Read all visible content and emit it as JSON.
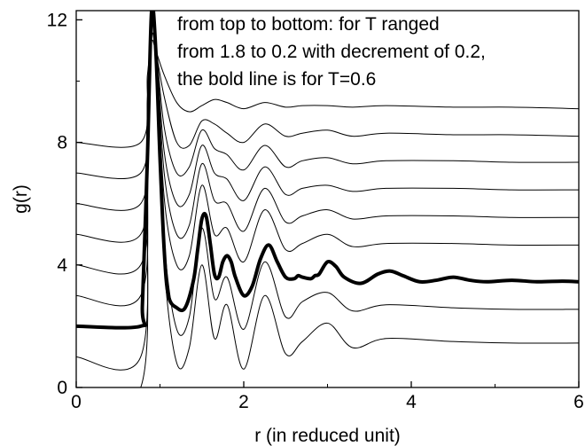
{
  "chart_data": {
    "type": "line",
    "title": "",
    "xlabel": "r (in reduced unit)",
    "ylabel": "g(r)",
    "xlim": [
      0,
      6
    ],
    "ylim": [
      0,
      12.3
    ],
    "xticks": [
      0,
      2,
      4,
      6
    ],
    "yticks": [
      0,
      4,
      8,
      12
    ],
    "grid": false,
    "legend": "none",
    "annotation": [
      "from top to bottom: for T ranged",
      "from 1.8 to 0.2 with decrement of 0.2,",
      "the bold line is for T=0.6"
    ],
    "series": [
      {
        "T": 1.8,
        "bold": false,
        "baseline": 8.0,
        "x": [
          0,
          0.77,
          0.85,
          0.9,
          0.95,
          1.05,
          1.2,
          1.35,
          1.5,
          1.65,
          1.8,
          2.0,
          2.25,
          2.5,
          2.7,
          3.0,
          3.3,
          3.7,
          4.5,
          5.2,
          6.0
        ],
        "y": [
          8.0,
          8.0,
          10.2,
          11.3,
          11.0,
          10.2,
          9.3,
          9.0,
          9.2,
          9.4,
          9.3,
          9.1,
          9.3,
          9.15,
          9.2,
          9.2,
          9.15,
          9.2,
          9.15,
          9.15,
          9.1
        ]
      },
      {
        "T": 1.6,
        "bold": false,
        "baseline": 7.0,
        "x": [
          0,
          0.77,
          0.85,
          0.9,
          0.95,
          1.05,
          1.2,
          1.35,
          1.5,
          1.65,
          1.8,
          2.0,
          2.25,
          2.5,
          2.7,
          3.0,
          3.3,
          3.7,
          4.5,
          5.2,
          6.0
        ],
        "y": [
          7.0,
          7.0,
          9.5,
          11.5,
          11.0,
          9.5,
          8.0,
          7.9,
          8.7,
          8.6,
          8.3,
          8.0,
          8.6,
          8.2,
          8.3,
          8.4,
          8.2,
          8.3,
          8.25,
          8.25,
          8.2
        ]
      },
      {
        "T": 1.4,
        "bold": false,
        "baseline": 6.0,
        "x": [
          0,
          0.77,
          0.85,
          0.9,
          0.95,
          1.05,
          1.2,
          1.35,
          1.5,
          1.65,
          1.8,
          2.0,
          2.25,
          2.5,
          2.7,
          3.0,
          3.3,
          3.7,
          4.5,
          5.2,
          6.0
        ],
        "y": [
          6.0,
          6.0,
          9.0,
          11.8,
          11.2,
          8.5,
          7.0,
          7.2,
          8.4,
          7.8,
          7.6,
          7.1,
          7.9,
          7.2,
          7.4,
          7.5,
          7.3,
          7.4,
          7.4,
          7.35,
          7.35
        ]
      },
      {
        "T": 1.2,
        "bold": false,
        "baseline": 5.0,
        "x": [
          0,
          0.77,
          0.85,
          0.9,
          0.95,
          1.05,
          1.2,
          1.35,
          1.5,
          1.65,
          1.8,
          2.0,
          2.25,
          2.5,
          2.7,
          3.0,
          3.3,
          3.7,
          4.5,
          5.2,
          6.0
        ],
        "y": [
          5.0,
          5.0,
          8.5,
          12.0,
          11.3,
          7.7,
          6.0,
          6.3,
          7.9,
          7.0,
          6.8,
          6.1,
          7.2,
          6.3,
          6.5,
          6.6,
          6.4,
          6.5,
          6.5,
          6.45,
          6.45
        ]
      },
      {
        "T": 1.0,
        "bold": false,
        "baseline": 4.0,
        "x": [
          0,
          0.77,
          0.85,
          0.9,
          0.95,
          1.05,
          1.2,
          1.35,
          1.5,
          1.65,
          1.8,
          2.0,
          2.25,
          2.5,
          2.7,
          3.0,
          3.3,
          3.7,
          4.5,
          5.2,
          6.0
        ],
        "y": [
          4.0,
          4.0,
          8.0,
          12.1,
          11.3,
          7.0,
          5.0,
          5.3,
          7.3,
          6.1,
          6.0,
          5.1,
          6.5,
          5.4,
          5.6,
          5.8,
          5.5,
          5.6,
          5.6,
          5.55,
          5.55
        ]
      },
      {
        "T": 0.8,
        "bold": false,
        "baseline": 3.0,
        "x": [
          0,
          0.77,
          0.85,
          0.9,
          0.95,
          1.05,
          1.2,
          1.35,
          1.5,
          1.65,
          1.8,
          2.0,
          2.25,
          2.5,
          2.7,
          3.0,
          3.3,
          3.7,
          4.5,
          5.2,
          6.0
        ],
        "y": [
          3.0,
          3.0,
          7.5,
          12.2,
          11.2,
          6.2,
          4.0,
          4.3,
          6.6,
          5.0,
          5.2,
          4.1,
          5.8,
          4.5,
          4.7,
          5.0,
          4.6,
          4.7,
          4.7,
          4.65,
          4.65
        ]
      },
      {
        "T": 0.6,
        "bold": true,
        "baseline": 2.0,
        "x": [
          0,
          0.77,
          0.79,
          0.85,
          0.9,
          0.95,
          1.0,
          1.05,
          1.1,
          1.2,
          1.3,
          1.4,
          1.45,
          1.5,
          1.55,
          1.6,
          1.65,
          1.7,
          1.75,
          1.8,
          1.85,
          1.9,
          2.0,
          2.1,
          2.2,
          2.3,
          2.4,
          2.5,
          2.6,
          2.65,
          2.7,
          2.8,
          2.85,
          2.9,
          3.0,
          3.1,
          3.2,
          3.4,
          3.6,
          3.75,
          3.9,
          4.1,
          4.3,
          4.5,
          4.7,
          4.9,
          5.2,
          5.5,
          5.8,
          6.0
        ],
        "y": [
          2.0,
          2.0,
          2.7,
          7.5,
          12.3,
          11.0,
          7.5,
          4.5,
          3.0,
          2.6,
          2.6,
          3.5,
          4.5,
          5.5,
          5.6,
          4.7,
          3.7,
          3.6,
          4.1,
          4.3,
          4.1,
          3.6,
          3.0,
          3.3,
          4.2,
          4.65,
          4.1,
          3.6,
          3.55,
          3.65,
          3.6,
          3.55,
          3.65,
          3.7,
          4.1,
          3.95,
          3.6,
          3.4,
          3.7,
          3.8,
          3.65,
          3.45,
          3.5,
          3.6,
          3.5,
          3.45,
          3.5,
          3.45,
          3.47,
          3.45
        ]
      },
      {
        "T": 0.4,
        "bold": false,
        "baseline": 1.0,
        "x": [
          0,
          0.77,
          0.85,
          0.9,
          0.95,
          1.05,
          1.2,
          1.35,
          1.5,
          1.65,
          1.8,
          2.0,
          2.25,
          2.5,
          2.7,
          3.0,
          3.3,
          3.7,
          4.5,
          5.2,
          6.0
        ],
        "y": [
          1.0,
          1.0,
          6.8,
          12.3,
          10.8,
          4.8,
          1.9,
          2.3,
          5.2,
          2.9,
          3.6,
          1.9,
          4.1,
          2.3,
          2.8,
          3.1,
          2.5,
          2.7,
          2.6,
          2.55,
          2.55
        ]
      },
      {
        "T": 0.2,
        "bold": false,
        "baseline": 0.0,
        "x": [
          0,
          0.77,
          0.85,
          0.9,
          0.95,
          1.05,
          1.2,
          1.35,
          1.5,
          1.65,
          1.8,
          2.0,
          2.25,
          2.5,
          2.7,
          3.0,
          3.3,
          3.7,
          4.5,
          5.2,
          6.0
        ],
        "y": [
          0.0,
          0.0,
          6.5,
          12.3,
          10.5,
          4.0,
          0.8,
          1.3,
          4.0,
          1.6,
          2.7,
          0.6,
          3.0,
          1.1,
          1.5,
          2.1,
          1.3,
          1.6,
          1.5,
          1.45,
          1.45
        ]
      }
    ]
  }
}
